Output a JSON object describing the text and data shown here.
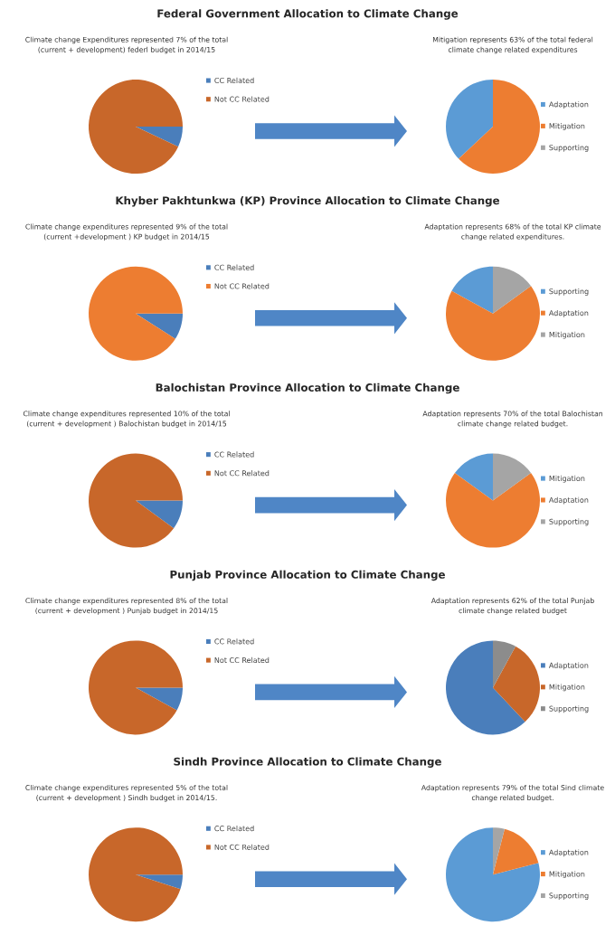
{
  "chart_data": [
    {
      "type": "pie",
      "title": "Federal Government Allocation to Climate Change",
      "subtitle": "Climate change Expenditures represented 7% of the total\n(current + development) federl budget in 2014/15",
      "categories": [
        "CC Related",
        "Not CC Related"
      ],
      "values": [
        7,
        93
      ],
      "colors": [
        "#4a7ebb",
        "#c8672a"
      ],
      "legend": "right"
    },
    {
      "type": "pie",
      "subtitle": "Mitigation represents 63% of the total federal\nclimate change related expenditures",
      "categories": [
        "Adaptation",
        "Mitigation",
        "Supporting"
      ],
      "values": [
        37,
        63,
        0
      ],
      "colors": [
        "#5b9bd5",
        "#ed7d31",
        "#a5a5a5"
      ],
      "legend": "right"
    },
    {
      "type": "pie",
      "title": "Khyber Pakhtunkwa (KP) Province Allocation to Climate Change",
      "subtitle": "Climate change expenditures represented 9% of the total\n(current +development ) KP budget in 2014/15",
      "categories": [
        "CC Related",
        "Not CC Related"
      ],
      "values": [
        9,
        91
      ],
      "colors": [
        "#4a7ebb",
        "#ed7d31"
      ],
      "legend": "right"
    },
    {
      "type": "pie",
      "subtitle": "Adaptation represents 68% of the total KP climate\nchange related expenditures.",
      "categories": [
        "Supporting",
        "Adaptation",
        "Mitigation"
      ],
      "values": [
        17,
        68,
        15
      ],
      "colors": [
        "#5b9bd5",
        "#ed7d31",
        "#a5a5a5"
      ],
      "legend": "right"
    },
    {
      "type": "pie",
      "title": "Balochistan Province Allocation to Climate Change",
      "subtitle": "Climate change expenditures represented 10% of the total\n(current + development ) Balochistan budget in 2014/15",
      "categories": [
        "CC Related",
        "Not CC Related"
      ],
      "values": [
        10,
        90
      ],
      "colors": [
        "#4a7ebb",
        "#c8672a"
      ],
      "legend": "right"
    },
    {
      "type": "pie",
      "subtitle": "Adaptation represents 70% of the total Balochistan\nclimate change related budget.",
      "categories": [
        "Mitigation",
        "Adaptation",
        "Supporting"
      ],
      "values": [
        15,
        70,
        15
      ],
      "colors": [
        "#5b9bd5",
        "#ed7d31",
        "#a5a5a5"
      ],
      "legend": "right"
    },
    {
      "type": "pie",
      "title": "Punjab Province Allocation to Climate Change",
      "subtitle": "Climate change expenditures represented 8% of the total\n(current + development ) Punjab budget in 2014/15",
      "categories": [
        "CC Related",
        "Not CC Related"
      ],
      "values": [
        8,
        92
      ],
      "colors": [
        "#4a7ebb",
        "#c8672a"
      ],
      "legend": "right"
    },
    {
      "type": "pie",
      "subtitle": "Adaptation represents 62% of the total Punjab\nclimate change related budget",
      "categories": [
        "Adaptation",
        "Mitigation",
        "Supporting"
      ],
      "values": [
        62,
        30,
        8
      ],
      "colors": [
        "#4a7ebb",
        "#c8672a",
        "#8c8c8c"
      ],
      "legend": "right"
    },
    {
      "type": "pie",
      "title": "Sindh Province Allocation to Climate Change",
      "subtitle": "Climate change expenditures represented 5% of the total\n(current + development ) Sindh budget in 2014/15.",
      "categories": [
        "CC Related",
        "Not CC Related"
      ],
      "values": [
        5,
        95
      ],
      "colors": [
        "#4a7ebb",
        "#c8672a"
      ],
      "legend": "right"
    },
    {
      "type": "pie",
      "subtitle": "Adaptation represents 79% of the total Sind climate\nchange related budget.",
      "categories": [
        "Adaptation",
        "Mitigation",
        "Supporting"
      ],
      "values": [
        79,
        17,
        4
      ],
      "colors": [
        "#5b9bd5",
        "#ed7d31",
        "#a5a5a5"
      ],
      "legend": "right"
    }
  ]
}
